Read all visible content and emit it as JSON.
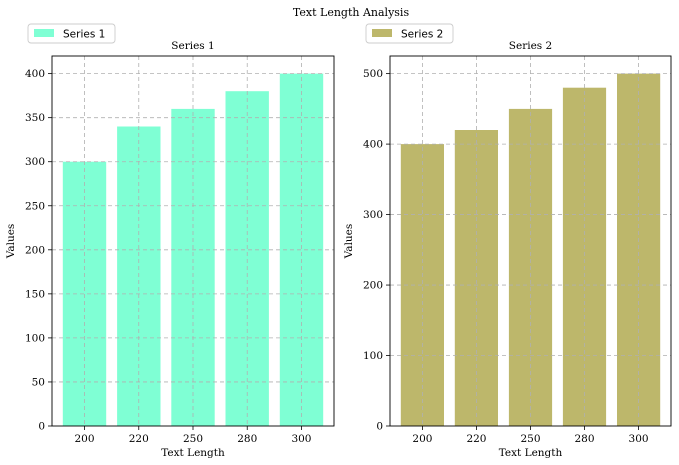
{
  "figure": {
    "title": "Text Length Analysis"
  },
  "chart_data": [
    {
      "type": "bar",
      "title": "Series 1",
      "xlabel": "Text Length",
      "ylabel": "Values",
      "categories": [
        "200",
        "220",
        "250",
        "280",
        "300"
      ],
      "series": [
        {
          "name": "Series 1",
          "values": [
            300,
            340,
            360,
            380,
            400
          ],
          "color": "#7fffd4"
        }
      ],
      "ylim": [
        0,
        420
      ],
      "yticks": [
        0,
        50,
        100,
        150,
        200,
        250,
        300,
        350,
        400
      ],
      "grid": true,
      "legend": "top-left, above plot"
    },
    {
      "type": "bar",
      "title": "Series 2",
      "xlabel": "Text Length",
      "ylabel": "Values",
      "categories": [
        "200",
        "220",
        "250",
        "280",
        "300"
      ],
      "series": [
        {
          "name": "Series 2",
          "values": [
            400,
            420,
            450,
            480,
            500
          ],
          "color": "#bdb76b"
        }
      ],
      "ylim": [
        0,
        525
      ],
      "yticks": [
        0,
        100,
        200,
        300,
        400,
        500
      ],
      "grid": true,
      "legend": "top-left, above plot"
    }
  ]
}
